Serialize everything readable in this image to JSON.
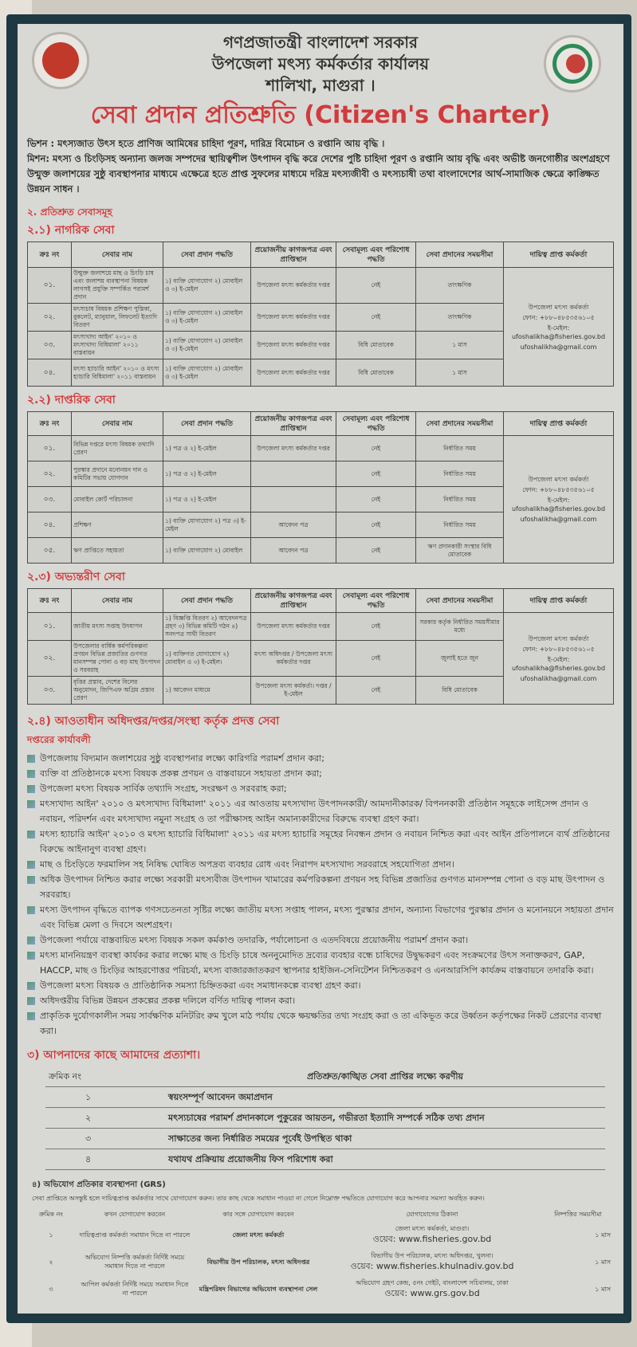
{
  "header": {
    "line1": "গণপ্রজাতন্ত্রী বাংলাদেশ সরকার",
    "line2": "উপজেলা মৎস্য কর্মকর্তার কার্যালয়",
    "line3": "শালিখা, মাগুরা ।",
    "title": "সেবা প্রদান প্রতিশ্রুতি (Citizen's Charter)"
  },
  "vision": "ভিশন : মৎস্যজাত উৎস হতে প্রাণিজ আমিষের চাহিদা পূরণ, দারিদ্র বিমোচন ও রপ্তানি আয় বৃদ্ধি ।",
  "mission": "মিশন: মৎস্য ও চিংড়িসহ অন্যান্য জলজ সম্পদের স্থায়িত্বশীল উৎপাদন বৃদ্ধি করে দেশের পুষ্টি চাহিদা পূরণ ও রপ্তানি আয় বৃদ্ধি এবং অভীষ্ট জনগোষ্ঠীর অংশগ্রহণে উন্মুক্ত জলাশয়ের সুষ্ঠু ব্যবস্থাপনার মাধ্যমে এক্ষেত্রে হতে প্রাপ্ত সুফলের মাধ্যমে দরিদ্র মৎস্যজীবী ও মৎস্যচাষী তথা বাংলাদেশের আর্থ-সামাজিক ক্ষেত্রে কাঙ্ক্ষিত উন্নয়ন সাধন ।",
  "section2": "২. প্রতিশ্রুত সেবাসমূহ",
  "columns": [
    "ক্রঃ নং",
    "সেবার নাম",
    "সেবা প্রদান পদ্ধতি",
    "প্রয়োজনীয় কাগজপত্র এবং প্রাপ্তিস্থান",
    "সেবামূল্য এবং পরিশোধ পদ্ধতি",
    "সেবা প্রদানের সময়সীমা",
    "দায়িত্ব প্রাপ্ত কর্মকর্তা"
  ],
  "officer": {
    "title": "উপজেলা মৎস্য কর্মকর্তা",
    "phone": "ফোন: +৮৮০৪৮৫৩৫৬১০৫",
    "email1": "ই-মেইল: ufoshalikha@fisheries.gov.bd",
    "email2": "ufoshalikha@gmail.com"
  },
  "citizen": {
    "heading": "২.১) নাগরিক সেবা",
    "rows": [
      {
        "no": "০১.",
        "name": "উন্মুক্ত জলাশয়ে মাছ ও চিংড়ি চাষ এবং জলাশয় ব্যবস্থাপনা বিষয়ক লাগসই প্রযুক্তি সম্পর্কিত পরামর্শ প্রদান",
        "method": "১) ব্যক্তি যোগাযোগ ২) মোবাইল ও ৩) ই-মেইল",
        "docs": "উপজেলা মৎস্য কর্মকর্তার দপ্তর",
        "fee": "নেই",
        "time": "তাৎক্ষণিক"
      },
      {
        "no": "০২.",
        "name": "মৎস্যচাষ বিষয়ক প্রশিক্ষণ পুস্তিকা, বুকলেট, ম্যানুয়াল, লিফলেট ইত্যাদি বিতরণ",
        "method": "১) ব্যক্তি যোগাযোগ ২) মোবাইল ও ৩) ই-মেইল",
        "docs": "উপজেলা মৎস্য কর্মকর্তার দপ্তর",
        "fee": "নেই",
        "time": "তাৎক্ষণিক"
      },
      {
        "no": "০৩.",
        "name": "মৎস্যখাদ্য আইন' ২০১০ ও মৎস্যখাদ্য বিধিমালা' ২০১১ বাস্তবায়ন",
        "method": "১) ব্যক্তি যোগাযোগ ২) মোবাইল ও ৩) ই-মেইল",
        "docs": "উপজেলা মৎস্য কর্মকর্তার দপ্তর",
        "fee": "বিধি মোতাবেক",
        "time": "১ মাস"
      },
      {
        "no": "০৪.",
        "name": "মৎস্য হ্যাচারি আইন' ২০১০ ও মৎস্য হ্যাচারি বিধিমালা' ২০১১ বাস্তবায়ন",
        "method": "১) ব্যক্তি যোগাযোগ ২) মোবাইল ও ৩) ই-মেইল",
        "docs": "উপজেলা মৎস্য কর্মকর্তার দপ্তর",
        "fee": "বিধি মোতাবেক",
        "time": "১ মাস"
      }
    ]
  },
  "office": {
    "heading": "২.২) দাপ্তরিক সেবা",
    "rows": [
      {
        "no": "০১.",
        "name": "বিভিন্ন দপ্তরে মৎস্য বিষয়ক তথ্যাদি প্রেরণ",
        "method": "১) পত্র ও ২) ই-মেইল",
        "docs": "উপজেলা মৎস্য কর্মকর্তার দপ্তর",
        "fee": "নেই",
        "time": "নির্ধারিত সময়"
      },
      {
        "no": "০২.",
        "name": "পুরস্কার প্রদানে মনোনয়ন দান ও কমিটির সভায় যোগদান",
        "method": "১) পত্র ও ২) ই-মেইল",
        "docs": "",
        "fee": "নেই",
        "time": "নির্ধারিত সময়"
      },
      {
        "no": "০৩.",
        "name": "মোবাইল কোর্ট পরিচালনা",
        "method": "১) পত্র ও ২) ই-মেইল",
        "docs": "",
        "fee": "নেই",
        "time": "নির্ধারিত সময়"
      },
      {
        "no": "০৪.",
        "name": "প্রশিক্ষণ",
        "method": "১) ব্যক্তি যোগাযোগ ২) পত্র ৩) ই-মেইল",
        "docs": "আবেদন পত্র",
        "fee": "নেই",
        "time": "নির্ধারিত সময়"
      },
      {
        "no": "০৫.",
        "name": "ঋণ প্রাপ্তিতে সহায়তা",
        "method": "১) ব্যক্তি যোগাযোগ ২) মোবাইল",
        "docs": "আবেদন পত্র",
        "fee": "নেই",
        "time": "ঋণ প্রদানকারী সংস্থার বিধি মোতাবেক"
      }
    ]
  },
  "internal": {
    "heading": "২.৩) অভ্যন্তরীণ সেবা",
    "rows": [
      {
        "no": "০১.",
        "name": "জাতীয় মৎস্য সপ্তাহ উদযাপন",
        "method": "১) বিজ্ঞপ্তি বিতরণ ২) আবেদনপত্র গ্রহণ ৩) বিভিন্ন কমিটি গঠন ৪) সনদপত্র সাথী বিতরণ",
        "docs": "উপজেলা মৎস্য কর্মকর্তার দপ্তর",
        "fee": "নেই",
        "time": "সরকার কর্তৃক নির্ধারিত সময়সীমার মধ্যে"
      },
      {
        "no": "০২.",
        "name": "উপজেলার বার্ষিক কর্মপরিকল্পনা প্রণয়ন বিভিন্ন প্রজাতির গুণগত মানসম্পন্ন পোনা ও বড় মাছ উৎপাদন ও সরবরাহ",
        "method": "১) ব্যক্তিগত যোগাযোগ ২) মোবাইল ও ৩) ই-মেইল।",
        "docs": "মৎস্য অধিদপ্তর / উপজেলা মৎস্য কর্মকর্তার দপ্তর",
        "fee": "নেই",
        "time": "জুলাই হতে জুন"
      },
      {
        "no": "০৩.",
        "name": "বৃত্তির প্রস্তাব, দেশের বিলের অনুমোদন, জিপিএফ অগ্রিম প্রস্তাব প্রেরণ",
        "method": "১) আবেদন মাধ্যমে",
        "docs": "উপজেলা মৎস্য কর্মকর্তা। দপ্তর / ই-মেইল",
        "fee": "নেই",
        "time": "বিধি মোতাবেক"
      }
    ]
  },
  "subordinate": {
    "heading": "২.৪) আওতাধীন অধিদপ্তর/দপ্তর/সংস্থা কর্তৃক প্রদত্ত সেবা",
    "subheading": "দপ্তরের কার্যাবলী",
    "items": [
      "উপজেলায় বিদ্যমান জলাশয়ের সুষ্ঠু ব্যবস্থাপনার লক্ষ্যে কারিগরি পরামর্শ প্রদান করা;",
      "ব্যক্তি বা প্রতিষ্ঠানকে মৎস্য বিষয়ক প্রকল্প প্রণয়ন ও বাস্তবায়নে সহায়তা প্রদান করা;",
      "উপজেলা মৎস্য বিষয়ক সার্বিক তথ্যাদি সংগ্রহ, সংরক্ষণ ও সরবরাহ করা;",
      "মৎস্যখাদ্য আইন' ২০১০ ও মৎস্যখাদ্য বিধিমালা' ২০১১ এর আওতায় মৎস্যখাদ্য উৎপাদনকারী/ আমদানীকারক/ বিপননকারী প্রতিষ্ঠান সমূহকে লাইসেন্স প্রদান ও নবায়ন, পরিদর্শন এবং মৎস্যখাদ্য নমুনা সংগ্রহ ও তা পরীক্ষাসহ আইন অমান্যকারীদের বিরুদ্ধে ব্যবস্থা গ্রহণ করা।",
      "মৎস্য হ্যাচারি আইন' ২০১০ ও মৎস্য হ্যাচারি বিধিমালা' ২০১১ এর মৎস্য হ্যাচারি সমূহের নিবন্ধন প্রদান ও নবায়ন নিশ্চিত করা এবং আইন প্রতিপালনে ব্যর্থ প্রতিষ্ঠানের বিরুদ্ধে আইনানুগ ব্যবস্থা গ্রহণ।",
      "মাছ ও চিংড়িতে ফরমালিন সহ নিষিদ্ধ ঘোষিত অপদ্রব্য ব্যবহার রোধ এবং নিরাপদ মৎস্যখাদ্য সরবরাহে সহযোগিতা প্রদান।",
      "অধিক উৎপাদন নিশ্চিত করার লক্ষ্যে সরকারী মৎস্যবীজ উৎপাদন খামারের কর্মপরিকল্পনা প্রণয়ন সহ বিভিন্ন প্রজাতির গুণগত মানসম্পন্ন পোনা ও বড় মাছ উৎপাদন ও সরবরাহ।",
      "মৎস্য উৎপাদন বৃদ্ধিতে ব্যাপক গণসচেতনতা সৃষ্টির লক্ষ্যে জাতীয় মৎস্য সপ্তাহ পালন, মৎস্য পুরস্কার প্রদান, অন্যান্য বিভাগের পুরস্কার প্রদান ও মনোনয়নে সহায়তা প্রদান এবং বিভিন্ন মেলা ও দিবসে অংশগ্রহণ।",
      "উপজেলা পর্যায়ে বাস্তবায়িত মৎস্য বিষয়ক সকল কর্মকাণ্ড তদারকি, পর্যালোচনা ও এতদবিষয়ে প্রয়োজনীয় পরামর্শ প্রদান করা।",
      "মৎস্য মাননিয়ন্ত্রণ ব্যবস্থা কার্যকর করার লক্ষ্যে মাছ ও চিংড়ি চাষে অননুমোদিত দ্রব্যের ব্যবহার বন্ধে চাষিদের উদ্বুদ্ধকরণ এবং সংক্রমণের উৎস সনাক্তকরণ, GAP, HACCP, মাছ ও চিংড়ির আহরণোত্তর পরিচর্যা, মৎস্য বাজারজাতকরণ স্থাপনার হাইজিন-সেনিটেশন নিশ্চিতকরণ ও এনআরসিপি কার্যক্রম বাস্তবায়নে তদারকি করা।",
      "উপজেলা মৎস্য বিষয়ক ও প্রাতিষ্ঠানিক সমস্যা চিহ্নিতকরা এবং সমাধানকল্পে ব্যবস্থা গ্রহণ করা।",
      "অধিদপ্তরীয় বিভিন্ন উন্নয়ন প্রকল্পের প্রকল্প দলিলে বর্ণিত দায়িত্ব পালন করা।",
      "প্রাকৃতিক দুর্যোগকালীন সময় সার্বক্ষণিক মনিটরিং রুম খুলে মাঠ পর্যায় থেকে ক্ষয়ক্ষতির তথ্য সংগ্রহ করা ও তা একিভূত করে উর্ধ্বতন কর্তৃপক্ষের নিকট প্রেরণের ব্যবস্থা করা।"
    ]
  },
  "expectations": {
    "heading": "৩) আপনাদের কাছে আমাদের প্রত্যাশা।",
    "col_no": "ক্রমিক নং",
    "col_text": "প্রতিশ্রুত/কাঙ্খিত সেবা প্রাপ্তির লক্ষ্যে করণীয়",
    "rows": [
      {
        "no": "১",
        "text": "স্বয়ংসম্পূর্ণ আবেদন জমাপ্রদান"
      },
      {
        "no": "২",
        "text": "মৎস্যচাষের পরামর্শ প্রদানকালে পুকুরের আয়তন, গভীরতা ইত্যাদি সম্পর্কে সঠিক তথ্য প্রদান"
      },
      {
        "no": "৩",
        "text": "সাক্ষাতের জন্য নির্ধারিত সময়ের পূর্বেই উপস্থিত থাকা"
      },
      {
        "no": "৪",
        "text": "যথাযথ প্রক্রিয়ায় প্রয়োজনীয় ফিস পরিশোধ করা"
      }
    ]
  },
  "grs": {
    "heading": "৪) অভিযোগ প্রতিকার ব্যবস্থাপনা (GRS)",
    "intro": "সেবা প্রাপ্তিতে অসন্তুষ্ট হলে দায়িত্বপ্রাপ্ত কর্মকর্তার সাথে যোগাযোগ করুন। তার কাছ থেকে সমাধান পাওয়া না গেলে নিম্নোক্ত পদ্ধতিতে যোগাযোগ করে আপনার সমস্যা অবহিত করুন।",
    "columns": [
      "ক্রমিক নং",
      "কখন যোগাযোগ করবেন",
      "কার সঙ্গে যোগাযোগ করবেন",
      "যোগাযোগের ঠিকানা",
      "নিষ্পত্তির সময়সীমা"
    ],
    "rows": [
      {
        "no": "১",
        "when": "দায়িত্বপ্রাপ্ত কর্মকর্তা সমাধান দিতে না পারলে",
        "whom": "জেলা মৎস্য কর্মকর্তা",
        "address": "জেলা মৎস্য কর্মকর্তা, মাগুরা।",
        "web": "ওয়েব: www.fisheries.gov.bd",
        "time": "১ মাস"
      },
      {
        "no": "২",
        "when": "অভিযোগ নিষ্পত্তি কর্মকর্তা নির্দিষ্ট সময়ে সমাধান দিতে না পারলে",
        "whom": "বিভাগীয় উপ পরিচালক, মৎস্য অধিদপ্তর",
        "address": "বিভাগীয় উপ পরিচালক, মৎস্য অধিদপ্তর, খুলনা।",
        "web": "ওয়েব: www.fisheries.khulnadiv.gov.bd",
        "time": "১ মাস"
      },
      {
        "no": "৩",
        "when": "আপিল কর্মকর্তা নির্দিষ্ট সময়ে সমাধান দিতে না পারলে",
        "whom": "মন্ত্রিপরিষদ বিভাগের অভিযোগ ব্যবস্থাপনা সেল",
        "address": "অভিযোগ গ্রহণ কেন্দ্র, ৫নং গেইট, বাংলাদেশ সচিবালয়, ঢাকা",
        "web": "ওয়েব: www.grs.gov.bd",
        "time": "১ মাস"
      }
    ]
  },
  "colors": {
    "frame": "#1e3942",
    "board": "#d8d8d5",
    "accent_red": "#d23b3b"
  }
}
